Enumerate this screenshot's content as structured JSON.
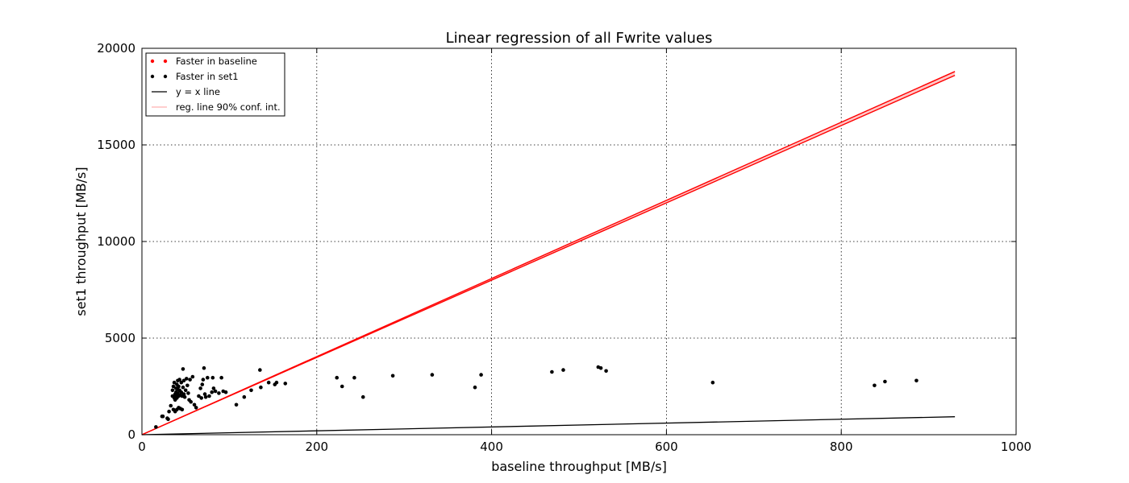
{
  "chart_data": {
    "type": "scatter",
    "title": "Linear regression of all Fwrite values",
    "xlabel": "baseline throughput [MB/s]",
    "ylabel": "set1 throughput [MB/s]",
    "xlim": [
      0,
      1000
    ],
    "ylim": [
      0,
      20000
    ],
    "xticks": [
      "0",
      "200",
      "400",
      "600",
      "800",
      "1000"
    ],
    "yticks": [
      "0",
      "5000",
      "10000",
      "15000",
      "20000"
    ],
    "grid": true,
    "legend_position": "top-left",
    "legend": [
      {
        "label": "Faster in baseline",
        "kind": "dots",
        "color": "#ff0000"
      },
      {
        "label": "Faster in set1",
        "kind": "dots",
        "color": "#000000"
      },
      {
        "label": "y = x line",
        "kind": "line",
        "color": "#000000"
      },
      {
        "label": "reg. line 90% conf. int.",
        "kind": "band",
        "color": "#ff0000"
      }
    ],
    "series": [
      {
        "name": "Faster in baseline",
        "color": "#ff0000",
        "points": []
      },
      {
        "name": "Faster in set1",
        "color": "#000000",
        "points": [
          [
            16,
            400
          ],
          [
            23,
            950
          ],
          [
            24,
            950
          ],
          [
            29,
            850
          ],
          [
            30,
            800
          ],
          [
            31,
            1200
          ],
          [
            33,
            1500
          ],
          [
            35,
            2000
          ],
          [
            35,
            2300
          ],
          [
            36,
            2500
          ],
          [
            36,
            1300
          ],
          [
            37,
            1900
          ],
          [
            37,
            2700
          ],
          [
            38,
            2100
          ],
          [
            38,
            1800
          ],
          [
            38,
            1200
          ],
          [
            39,
            2400
          ],
          [
            39,
            2200
          ],
          [
            39,
            2000
          ],
          [
            40,
            2600
          ],
          [
            40,
            1900
          ],
          [
            40,
            1300
          ],
          [
            41,
            2800
          ],
          [
            41,
            2350
          ],
          [
            41,
            2150
          ],
          [
            42,
            2500
          ],
          [
            42,
            2000
          ],
          [
            42,
            1400
          ],
          [
            43,
            2850
          ],
          [
            43,
            2300
          ],
          [
            44,
            2050
          ],
          [
            44,
            1350
          ],
          [
            45,
            2700
          ],
          [
            45,
            2200
          ],
          [
            46,
            2000
          ],
          [
            46,
            1300
          ],
          [
            47,
            3400
          ],
          [
            47,
            2450
          ],
          [
            48,
            2800
          ],
          [
            48,
            2100
          ],
          [
            49,
            1950
          ],
          [
            50,
            2300
          ],
          [
            51,
            2900
          ],
          [
            52,
            2550
          ],
          [
            53,
            2150
          ],
          [
            54,
            1800
          ],
          [
            55,
            2850
          ],
          [
            56,
            1700
          ],
          [
            58,
            3000
          ],
          [
            60,
            1550
          ],
          [
            62,
            1400
          ],
          [
            65,
            2000
          ],
          [
            67,
            2400
          ],
          [
            68,
            1900
          ],
          [
            69,
            2600
          ],
          [
            70,
            2850
          ],
          [
            71,
            3450
          ],
          [
            72,
            2100
          ],
          [
            73,
            1950
          ],
          [
            75,
            2950
          ],
          [
            77,
            2000
          ],
          [
            80,
            2200
          ],
          [
            81,
            2950
          ],
          [
            82,
            2400
          ],
          [
            84,
            2250
          ],
          [
            88,
            2150
          ],
          [
            91,
            2950
          ],
          [
            93,
            2250
          ],
          [
            96,
            2200
          ],
          [
            108,
            1550
          ],
          [
            117,
            1950
          ],
          [
            125,
            2300
          ],
          [
            135,
            3350
          ],
          [
            136,
            2450
          ],
          [
            145,
            2700
          ],
          [
            152,
            2600
          ],
          [
            154,
            2700
          ],
          [
            164,
            2650
          ],
          [
            223,
            2950
          ],
          [
            229,
            2500
          ],
          [
            243,
            2950
          ],
          [
            253,
            1950
          ],
          [
            287,
            3050
          ],
          [
            332,
            3100
          ],
          [
            381,
            2450
          ],
          [
            388,
            3100
          ],
          [
            469,
            3250
          ],
          [
            482,
            3350
          ],
          [
            522,
            3500
          ],
          [
            525,
            3450
          ],
          [
            531,
            3300
          ],
          [
            653,
            2700
          ],
          [
            838,
            2550
          ],
          [
            850,
            2750
          ],
          [
            886,
            2800
          ]
        ]
      }
    ],
    "lines": [
      {
        "name": "y = x line",
        "color": "#000000",
        "from": [
          0,
          0
        ],
        "to": [
          930,
          930
        ]
      },
      {
        "name": "reg. line 90% conf. int.",
        "color": "#ff0000",
        "upper": [
          [
            0,
            0
          ],
          [
            930,
            18800
          ]
        ],
        "lower": [
          [
            0,
            0
          ],
          [
            930,
            18600
          ]
        ]
      }
    ]
  }
}
